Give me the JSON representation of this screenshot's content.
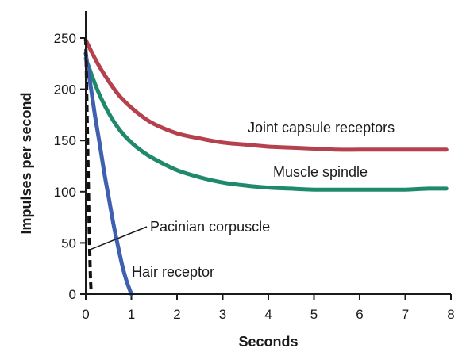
{
  "chart_data": {
    "type": "line",
    "xlabel": "Seconds",
    "ylabel": "Impulses per second",
    "xlim": [
      0,
      8
    ],
    "ylim": [
      0,
      250
    ],
    "xticks": [
      0,
      1,
      2,
      3,
      4,
      5,
      6,
      7,
      8
    ],
    "yticks": [
      0,
      50,
      100,
      150,
      200,
      250
    ],
    "grid": false,
    "series": [
      {
        "name": "Joint capsule receptors",
        "color": "#b5414f",
        "style": "solid",
        "x": [
          0,
          0.25,
          0.5,
          0.75,
          1,
          1.25,
          1.5,
          2,
          2.5,
          3,
          3.5,
          4,
          4.5,
          5,
          5.5,
          6,
          6.5,
          7,
          7.5,
          7.9
        ],
        "y": [
          248,
          226,
          208,
          193,
          182,
          173,
          166,
          157,
          152,
          148,
          146,
          144,
          143,
          142,
          141,
          141,
          141,
          141,
          141,
          141
        ]
      },
      {
        "name": "Muscle spindle",
        "color": "#1f8a6b",
        "style": "solid",
        "x": [
          0,
          0.25,
          0.5,
          0.75,
          1,
          1.25,
          1.5,
          2,
          2.5,
          3,
          3.5,
          4,
          4.5,
          5,
          5.5,
          6,
          6.5,
          7,
          7.5,
          7.9
        ],
        "y": [
          230,
          200,
          177,
          160,
          148,
          139,
          132,
          121,
          114,
          109,
          106,
          104,
          103,
          102,
          102,
          102,
          102,
          102,
          103,
          103
        ]
      },
      {
        "name": "Hair receptor",
        "color": "#3f5fb0",
        "style": "solid",
        "x": [
          0,
          0.1,
          0.2,
          0.3,
          0.4,
          0.5,
          0.6,
          0.7,
          0.8,
          0.9,
          1.0
        ],
        "y": [
          235,
          205,
          175,
          148,
          120,
          95,
          70,
          48,
          28,
          12,
          0
        ]
      },
      {
        "name": "Pacinian corpuscle",
        "color": "#111111",
        "style": "dashed",
        "x": [
          0,
          0.02,
          0.04,
          0.06,
          0.08,
          0.1,
          0.12
        ],
        "y": [
          250,
          200,
          150,
          100,
          55,
          20,
          0
        ]
      }
    ],
    "annotations": [
      {
        "text": "Joint capsule receptors",
        "series": "Joint capsule receptors"
      },
      {
        "text": "Muscle spindle",
        "series": "Muscle spindle"
      },
      {
        "text": "Pacinian corpuscle",
        "series": "Pacinian corpuscle",
        "pointer": {
          "x": 0.07,
          "y": 43
        }
      },
      {
        "text": "Hair receptor",
        "series": "Hair receptor"
      }
    ]
  }
}
